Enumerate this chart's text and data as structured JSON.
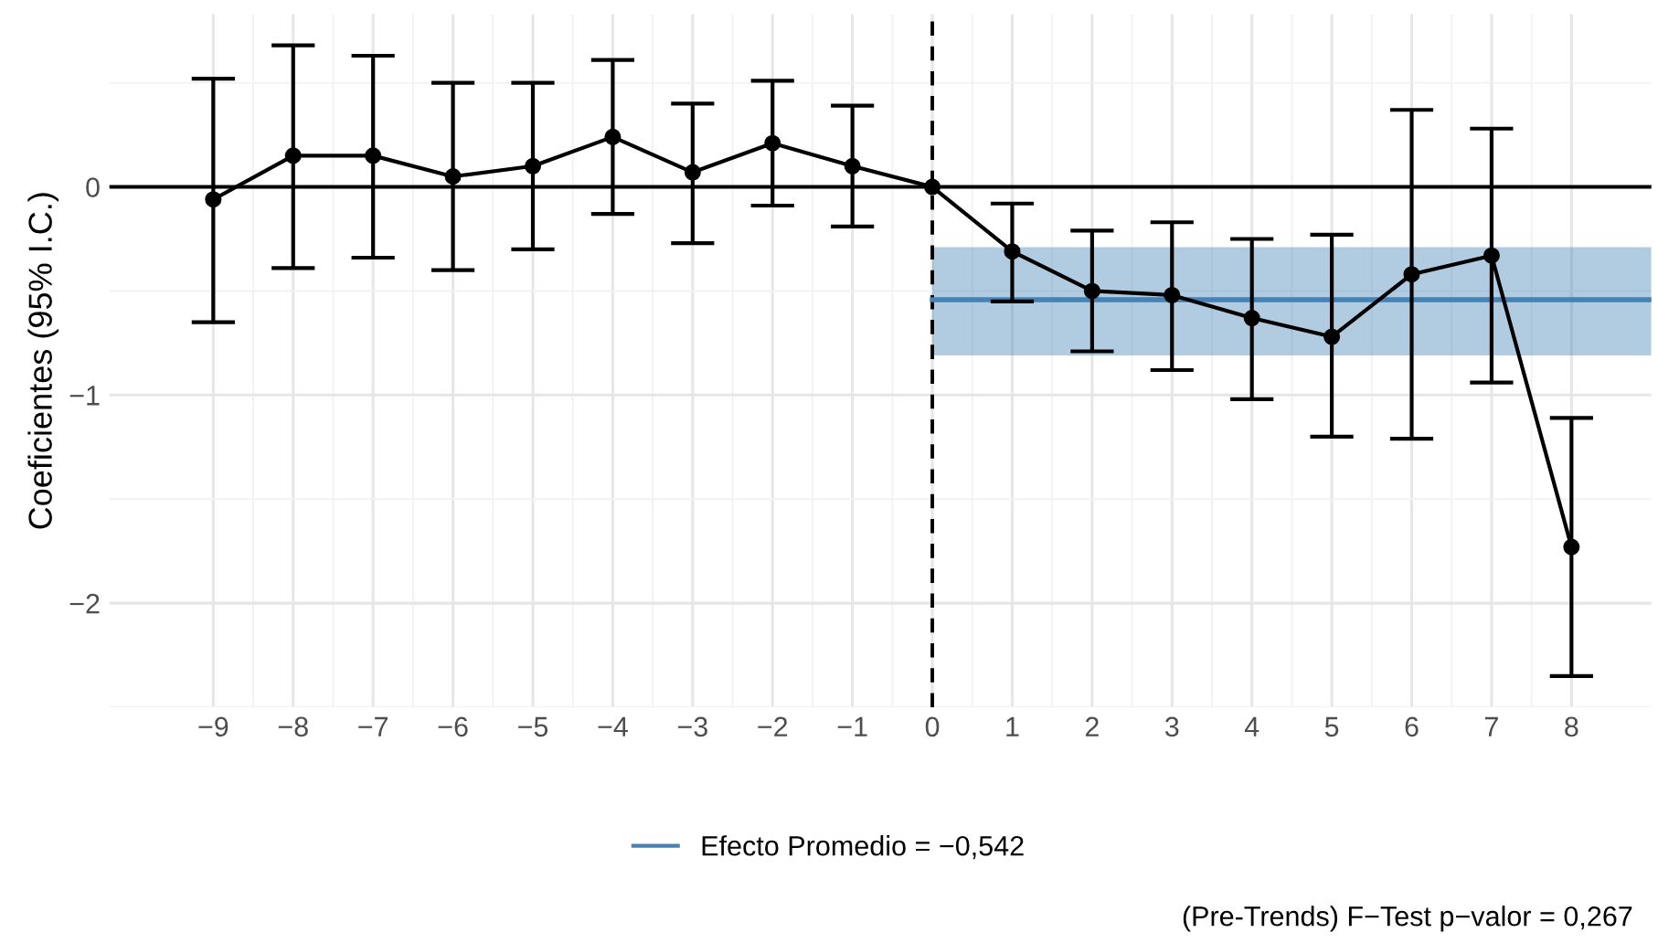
{
  "chart_data": {
    "type": "line",
    "ylabel": "Coeficientes (95% I.C.)",
    "x": [
      -9,
      -8,
      -7,
      -6,
      -5,
      -4,
      -3,
      -2,
      -1,
      0,
      1,
      2,
      3,
      4,
      5,
      6,
      7,
      8
    ],
    "series": [
      {
        "color": "#000000",
        "marker": "circle",
        "values": [
          -0.06,
          0.15,
          0.15,
          0.05,
          0.1,
          0.24,
          0.07,
          0.21,
          0.1,
          0,
          -0.31,
          -0.5,
          -0.52,
          -0.63,
          -0.72,
          -0.42,
          -0.33,
          -1.73
        ],
        "errors": [
          [
            -0.65,
            0.52
          ],
          [
            -0.39,
            0.68
          ],
          [
            -0.34,
            0.63
          ],
          [
            -0.4,
            0.5
          ],
          [
            -0.3,
            0.5
          ],
          [
            -0.13,
            0.61
          ],
          [
            -0.27,
            0.4
          ],
          [
            -0.09,
            0.51
          ],
          [
            -0.19,
            0.39
          ],
          null,
          [
            -0.55,
            -0.08
          ],
          [
            -0.79,
            -0.21
          ],
          [
            -0.88,
            -0.17
          ],
          [
            -1.02,
            -0.25
          ],
          [
            -1.2,
            -0.23
          ],
          [
            -1.21,
            0.37
          ],
          [
            -0.94,
            0.28
          ],
          [
            -2.35,
            -1.11
          ]
        ]
      },
      {
        "name": "Efecto Promedio = −0,542",
        "color": "#4682b4",
        "marker": "none",
        "x": [
          0,
          9.0
        ],
        "values": [
          -0.542,
          -0.542
        ],
        "lower": [
          -0.81,
          -0.81
        ],
        "upper": [
          -0.29,
          -0.29
        ]
      }
    ],
    "ref_lines": [
      {
        "axis": "y",
        "value": 0,
        "color": "#000000",
        "line_style": "solid"
      },
      {
        "axis": "x",
        "value": 0,
        "color": "#000000",
        "line_style": "dashed"
      }
    ],
    "xlim": [
      -10.3,
      9.0
    ],
    "ylim": [
      -2.5,
      0.83
    ],
    "xticks": [
      {
        "value": -9,
        "label": "−9"
      },
      {
        "value": -8,
        "label": "−8"
      },
      {
        "value": -7,
        "label": "−7"
      },
      {
        "value": -6,
        "label": "−6"
      },
      {
        "value": -5,
        "label": "−5"
      },
      {
        "value": -4,
        "label": "−4"
      },
      {
        "value": -3,
        "label": "−3"
      },
      {
        "value": -2,
        "label": "−2"
      },
      {
        "value": -1,
        "label": "−1"
      },
      0,
      1,
      2,
      3,
      4,
      5,
      6,
      7,
      8
    ],
    "yticks": [
      {
        "value": -2,
        "label": "−2"
      },
      {
        "value": -1,
        "label": "−1"
      },
      0
    ],
    "grid": true,
    "legend": "bottom",
    "annotations": [
      "(Pre-Trends) F−Test p−valor = 0,267"
    ]
  }
}
